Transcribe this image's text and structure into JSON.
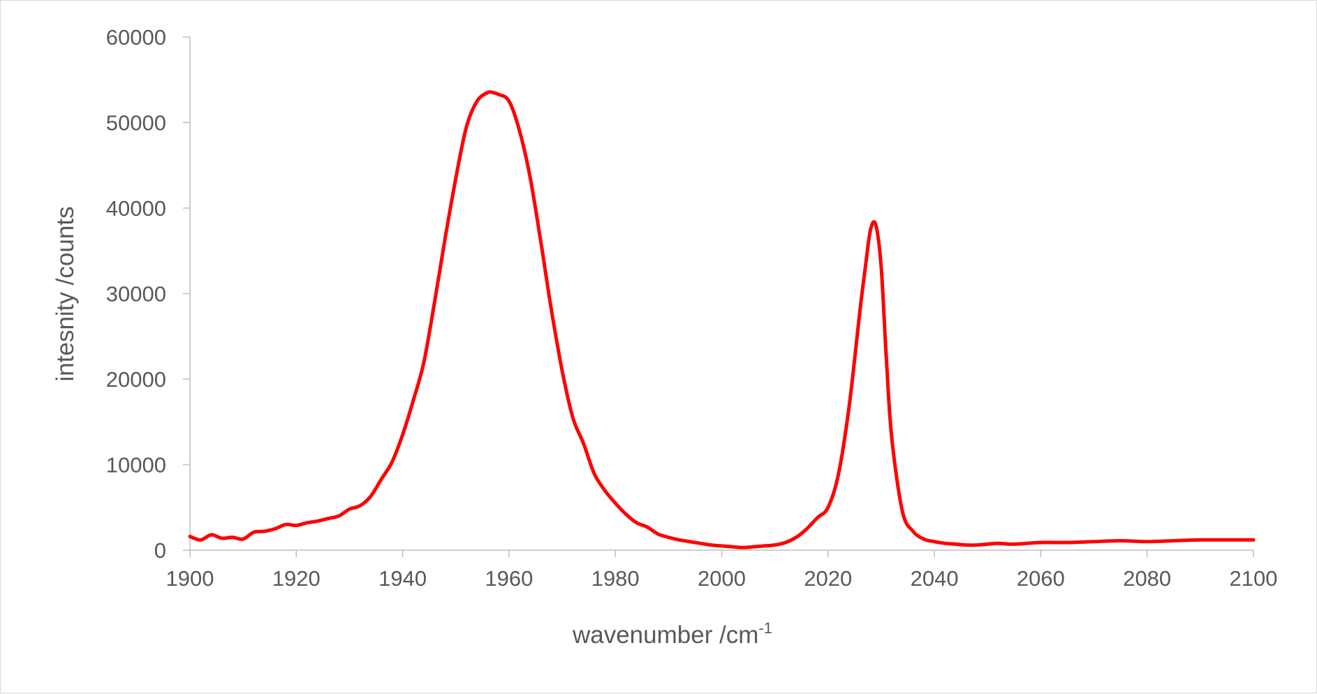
{
  "chart_data": {
    "type": "line",
    "title": "",
    "xlabel": "wavenumber /cm",
    "xlabel_superscript": "-1",
    "ylabel": "intesnity /counts",
    "xlim": [
      1900,
      2100
    ],
    "ylim": [
      0,
      60000
    ],
    "x_ticks": [
      1900,
      1920,
      1940,
      1960,
      1980,
      2000,
      2020,
      2040,
      2060,
      2080,
      2100
    ],
    "y_ticks": [
      0,
      10000,
      20000,
      30000,
      40000,
      50000,
      60000
    ],
    "grid": false,
    "legend": "none",
    "series": [
      {
        "color": "#ff0000",
        "x": [
          1900,
          1902,
          1904,
          1906,
          1908,
          1910,
          1912,
          1914,
          1916,
          1918,
          1920,
          1922,
          1924,
          1926,
          1928,
          1930,
          1932,
          1934,
          1936,
          1938,
          1940,
          1942,
          1944,
          1946,
          1948,
          1950,
          1952,
          1954,
          1956,
          1957,
          1958,
          1960,
          1962,
          1964,
          1966,
          1968,
          1970,
          1972,
          1974,
          1976,
          1978,
          1980,
          1982,
          1984,
          1986,
          1988,
          1990,
          1992,
          1994,
          1996,
          1998,
          2000,
          2002,
          2004,
          2006,
          2008,
          2010,
          2012,
          2014,
          2016,
          2018,
          2020,
          2022,
          2024,
          2026,
          2027,
          2028,
          2029,
          2030,
          2031,
          2032,
          2034,
          2036,
          2038,
          2040,
          2042,
          2044,
          2046,
          2048,
          2050,
          2052,
          2055,
          2060,
          2065,
          2070,
          2075,
          2080,
          2085,
          2090,
          2095,
          2100
        ],
        "y": [
          1600,
          1200,
          1800,
          1400,
          1500,
          1300,
          2100,
          2200,
          2500,
          3000,
          2900,
          3200,
          3400,
          3700,
          4000,
          4800,
          5200,
          6300,
          8300,
          10300,
          13500,
          17500,
          22000,
          29000,
          36500,
          43500,
          49500,
          52500,
          53500,
          53500,
          53300,
          52500,
          49000,
          43500,
          36000,
          28000,
          21000,
          15500,
          12500,
          9000,
          7000,
          5500,
          4200,
          3200,
          2700,
          1900,
          1500,
          1200,
          1000,
          800,
          600,
          500,
          400,
          300,
          400,
          500,
          600,
          900,
          1500,
          2500,
          3800,
          5000,
          9000,
          17000,
          28000,
          33000,
          37500,
          38000,
          33000,
          22000,
          13000,
          4500,
          2200,
          1300,
          1000,
          800,
          700,
          600,
          600,
          700,
          800,
          700,
          900,
          900,
          1000,
          1100,
          1000,
          1100,
          1200,
          1200,
          1200
        ]
      }
    ]
  }
}
